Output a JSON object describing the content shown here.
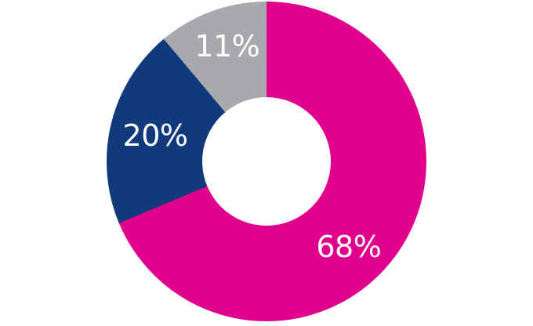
{
  "chart_data": {
    "type": "pie",
    "subtype": "donut",
    "title": "",
    "legend": "none",
    "background": "#ffffff",
    "label_color": "#ffffff",
    "start_angle_deg": 0,
    "direction": "clockwise",
    "inner_radius_ratio": 0.4,
    "values_sum_displayed": 99,
    "segments": [
      {
        "name": "segment-68",
        "label": "68%",
        "value": 68,
        "color": "#e0008c",
        "label_pos": {
          "x_pct": 75.7,
          "y_pct": 76.7
        }
      },
      {
        "name": "segment-20",
        "label": "20%",
        "value": 20,
        "color": "#113a7c",
        "label_pos": {
          "x_pct": 15.2,
          "y_pct": 41.9
        }
      },
      {
        "name": "segment-11",
        "label": "11%",
        "value": 11,
        "color": "#a8a9ad",
        "label_pos": {
          "x_pct": 37.7,
          "y_pct": 14.0
        }
      }
    ]
  }
}
